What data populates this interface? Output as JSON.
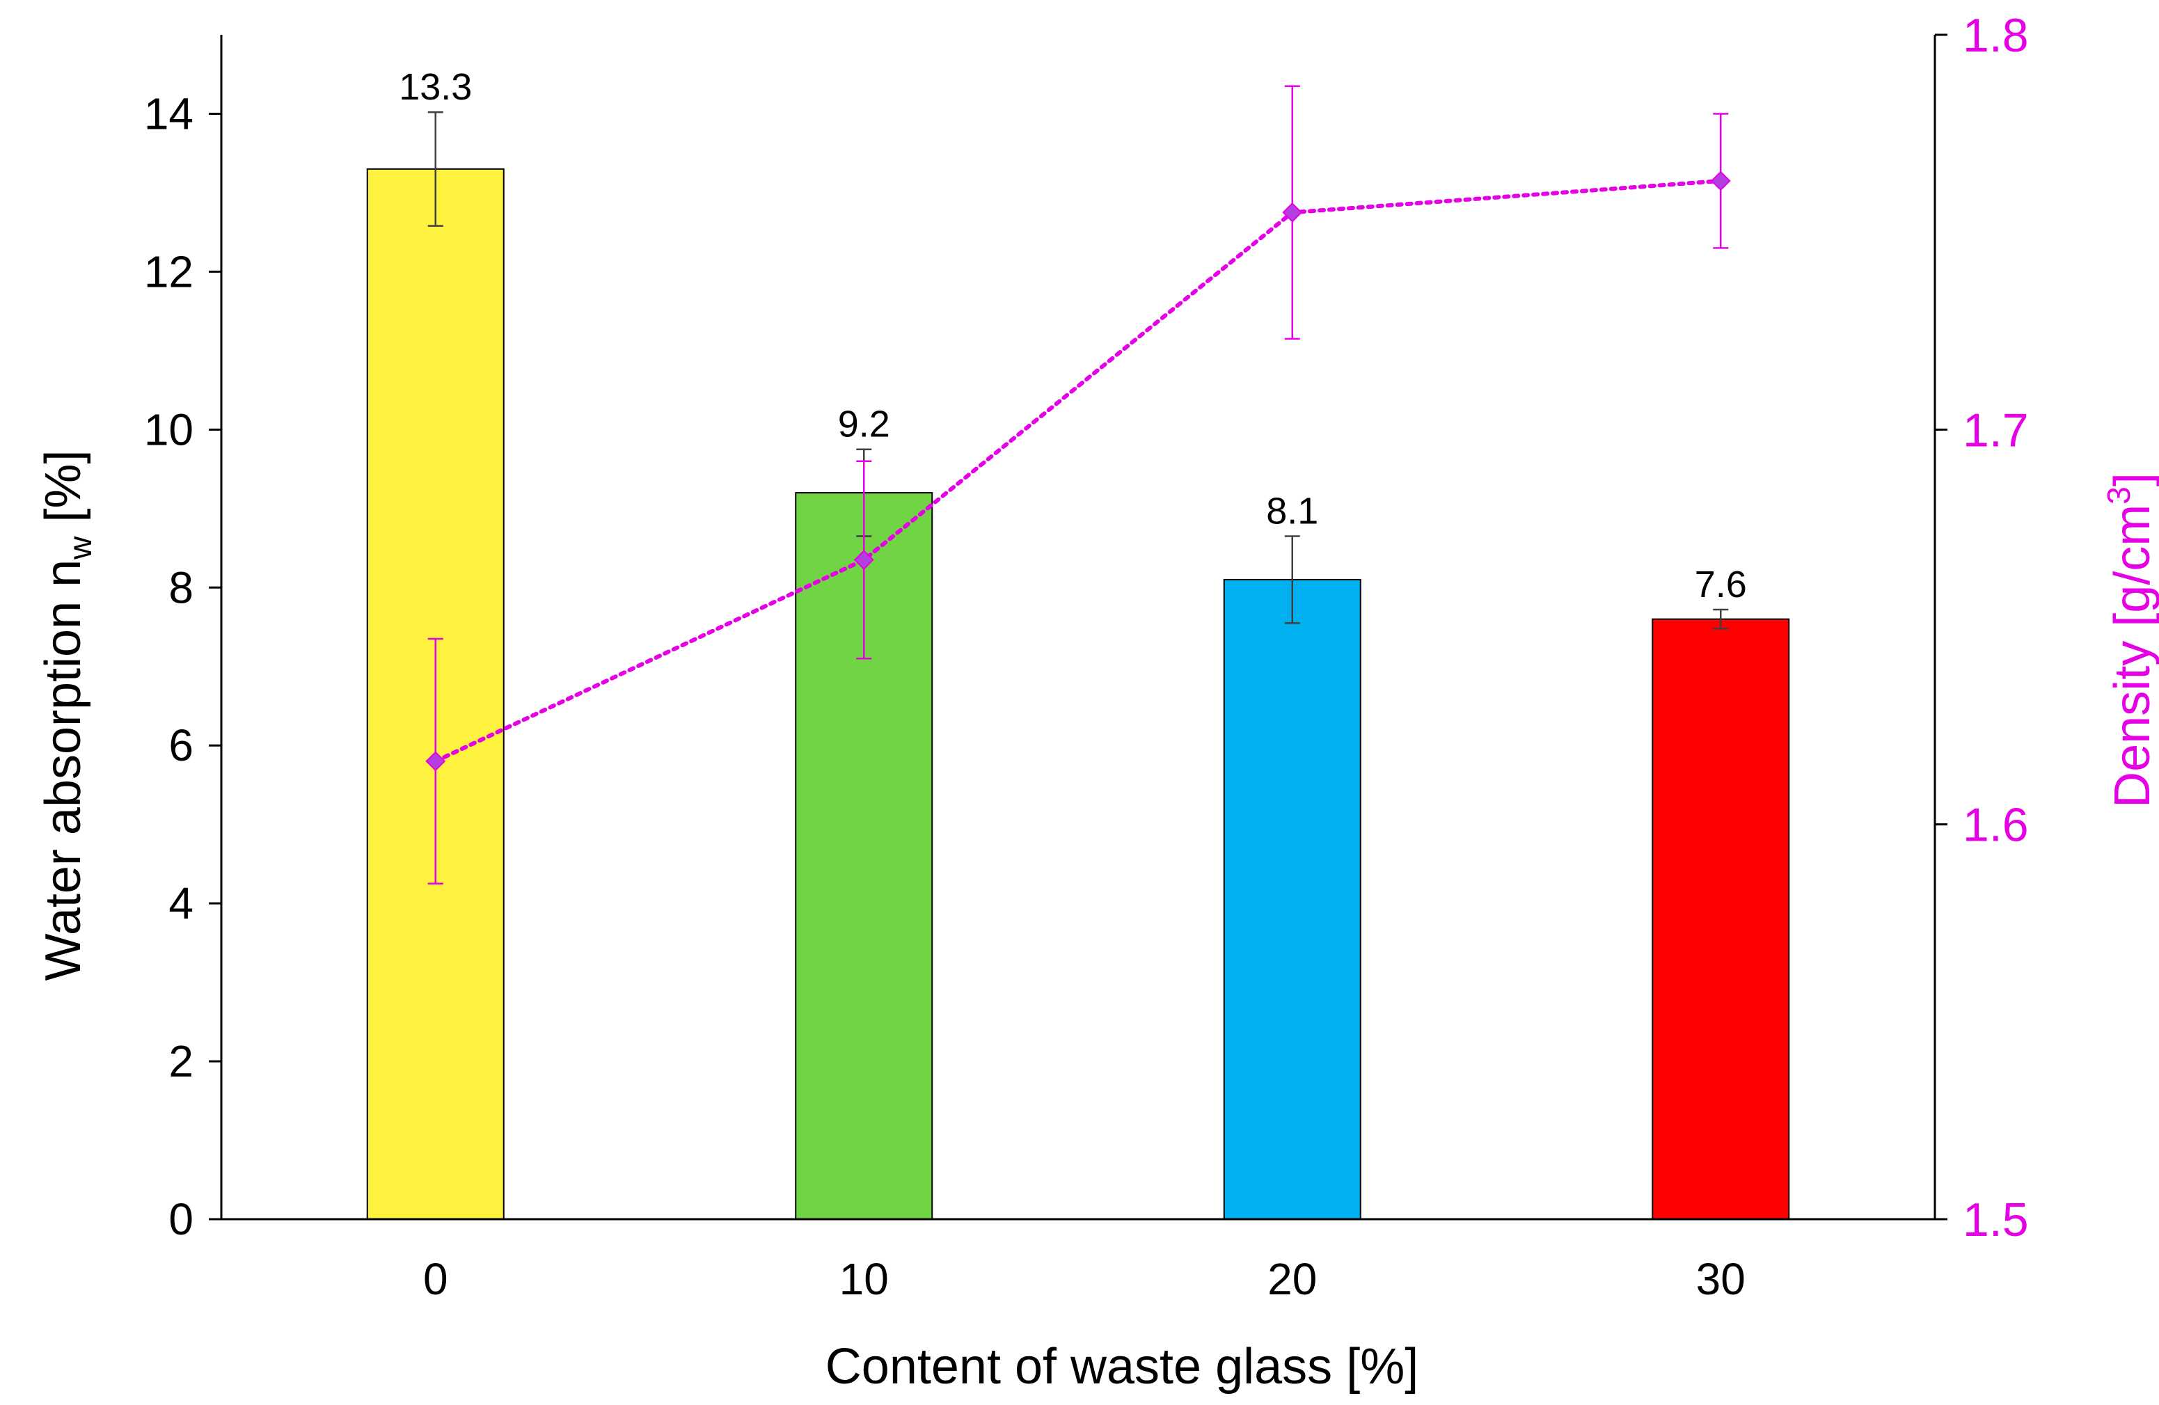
{
  "chart_data": {
    "type": "bar",
    "categories": [
      "0",
      "10",
      "20",
      "30"
    ],
    "xlabel": "Content of waste glass [%]",
    "ylabel": {
      "main": "Water absorption n",
      "sub": "w",
      "suffix": " [%]"
    },
    "y2label": {
      "main": "Density [g/cm",
      "sup": "3",
      "suffix": "]"
    },
    "ylim": [
      0,
      15
    ],
    "yticks": [
      0,
      2,
      4,
      6,
      8,
      10,
      12,
      14
    ],
    "y2lim": [
      1.5,
      1.8
    ],
    "y2ticks": [
      "1.5",
      "1.6",
      "1.7",
      "1.8"
    ],
    "bars": {
      "values": [
        13.3,
        9.2,
        8.1,
        7.6
      ],
      "labels": [
        "13.3",
        "9.2",
        "8.1",
        "7.6"
      ],
      "errors": [
        0.72,
        0.55,
        0.55,
        0.12
      ],
      "colors": [
        "#FFF23F",
        "#70D444",
        "#00B0F0",
        "#FF0000"
      ]
    },
    "line": {
      "values": [
        1.616,
        1.667,
        1.755,
        1.763
      ],
      "errors": [
        0.031,
        0.025,
        0.032,
        0.017
      ],
      "color": "#E600E6",
      "marker_color": "#B23FE0",
      "style": "dotted",
      "marker": "diamond"
    },
    "grid": false,
    "legend": "none"
  }
}
